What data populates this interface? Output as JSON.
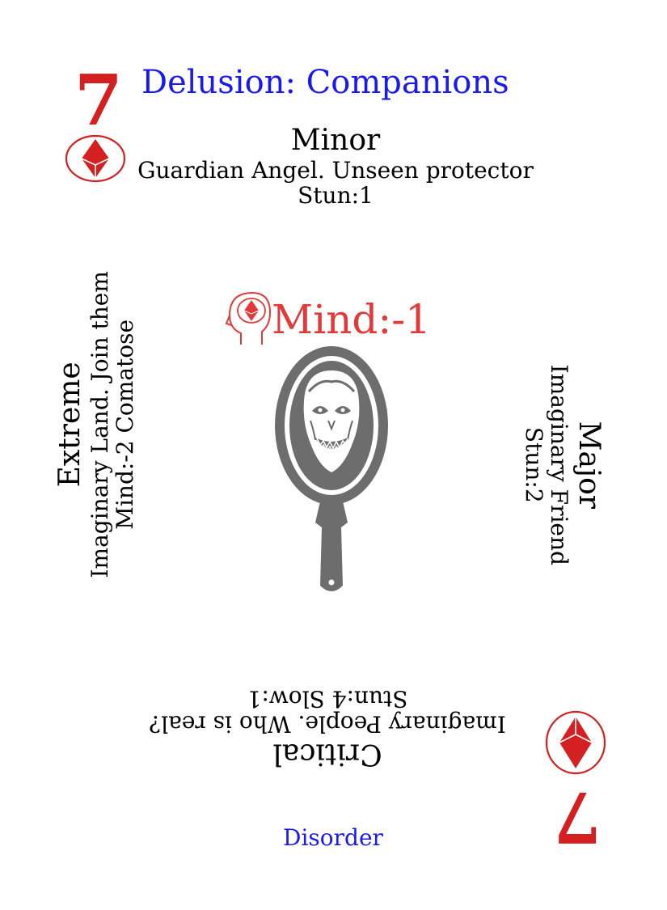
{
  "card": {
    "rank": "7",
    "title": "Delusion: Companions",
    "footer": "Disorder",
    "colors": {
      "suit": "#d42020",
      "title": "#1a1aee",
      "mind": "#e03a3a",
      "mirror": "#6d6d6d",
      "text": "#000000"
    }
  },
  "severities": {
    "minor": {
      "label": "Minor",
      "desc": "Guardian Angel. Unseen protector",
      "effect": "Stun:1"
    },
    "major": {
      "label": "Major",
      "desc": "Imaginary Friend",
      "effect": "Stun:2"
    },
    "critical": {
      "label": "Critical",
      "desc": "Imaginary People. Who is real?",
      "effect": "Stun:4 Slow:1"
    },
    "extreme": {
      "label": "Extreme",
      "desc": "Imaginary Land. Join them",
      "effect": "Mind:-2 Comatose"
    }
  },
  "mind_modifier": "Mind:-1",
  "icons": {
    "suit": "diamond-suit-icon",
    "mind": "head-diamond-icon",
    "art": "haunted-mirror-icon"
  }
}
